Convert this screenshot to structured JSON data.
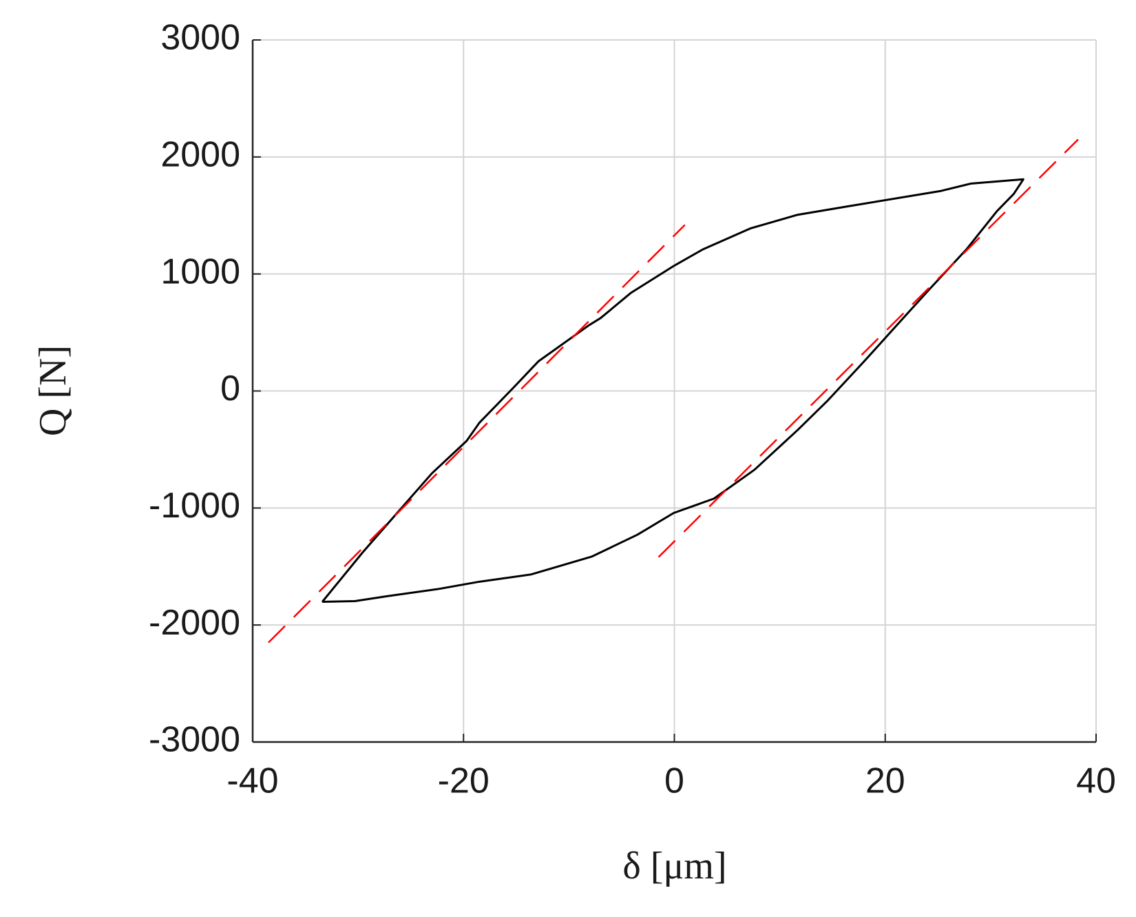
{
  "chart_data": {
    "type": "line",
    "xlabel": "δ  [μm]",
    "ylabel": "Q [N]",
    "xlim": [
      -40,
      40
    ],
    "xticks": [
      -40,
      -20,
      0,
      20,
      40
    ],
    "ylim": [
      -3000,
      3000
    ],
    "yticks": [
      -3000,
      -2000,
      -1000,
      0,
      1000,
      2000,
      3000
    ],
    "grid": true,
    "series": [
      {
        "color": "#000000",
        "dashed": false,
        "x": [
          -33.4,
          -29.6,
          -26.0,
          -23.0,
          -19.7,
          -18.5,
          -15.3,
          -12.9,
          -8.1,
          -7.0,
          -4.1,
          -0.07,
          2.7,
          7.2,
          11.7,
          16.6,
          25.3,
          28.1,
          33.1,
          32.2,
          30.6,
          27.7,
          24.2,
          21.1,
          18.0,
          14.5,
          11.7,
          7.6,
          3.75,
          -0.07,
          -3.5,
          -7.8,
          -13.6,
          -18.5,
          -22.3,
          -27.2,
          -30.3,
          -33.4
        ],
        "values": [
          -1802,
          -1383,
          -1012,
          -704,
          -426,
          -272,
          25,
          253,
          562,
          623,
          840,
          1068,
          1210,
          1389,
          1506,
          1580,
          1710,
          1772,
          1809,
          1685,
          1537,
          1210,
          870,
          562,
          253,
          -86,
          -333,
          -673,
          -920,
          -1043,
          -1228,
          -1414,
          -1568,
          -1630,
          -1691,
          -1753,
          -1796,
          -1802
        ]
      },
      {
        "color": "#ff0000",
        "dashed": true,
        "x": [
          -38.5,
          1.0
        ],
        "values": [
          -2150,
          1420
        ]
      },
      {
        "color": "#ff0000",
        "dashed": true,
        "x": [
          -1.5,
          38.3
        ],
        "values": [
          -1420,
          2150
        ]
      }
    ]
  }
}
